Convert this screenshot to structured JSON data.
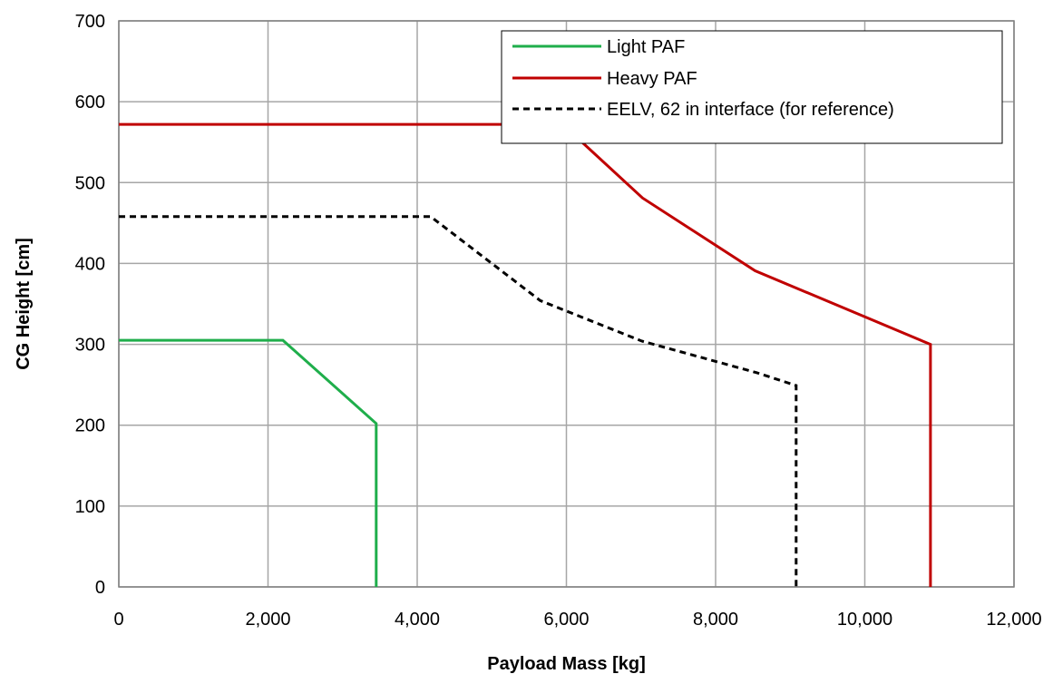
{
  "chart_data": {
    "type": "line",
    "xlabel": "Payload Mass [kg]",
    "ylabel": "CG Height [cm]",
    "xlim": [
      0,
      12000
    ],
    "ylim": [
      0,
      700
    ],
    "x_ticks": [
      0,
      2000,
      4000,
      6000,
      8000,
      10000,
      12000
    ],
    "x_tick_labels": [
      "0",
      "2,000",
      "4,000",
      "6,000",
      "8,000",
      "10,000",
      "12,000"
    ],
    "y_ticks": [
      0,
      100,
      200,
      300,
      400,
      500,
      600,
      700
    ],
    "y_tick_labels": [
      "0",
      "100",
      "200",
      "300",
      "400",
      "500",
      "600",
      "700"
    ],
    "grid": true,
    "legend_position": "top-right",
    "series": [
      {
        "name": "Light PAF",
        "color": "#1fae4b",
        "style": "solid",
        "points": [
          [
            0,
            305
          ],
          [
            2200,
            305
          ],
          [
            3450,
            202
          ],
          [
            3450,
            0
          ]
        ]
      },
      {
        "name": "Heavy PAF",
        "color": "#c00000",
        "style": "solid",
        "points": [
          [
            0,
            572
          ],
          [
            5950,
            572
          ],
          [
            7020,
            481
          ],
          [
            8530,
            391
          ],
          [
            10880,
            300
          ],
          [
            10880,
            0
          ]
        ]
      },
      {
        "name": "EELV, 62 in interface (for reference)",
        "color": "#000000",
        "style": "dashed",
        "points": [
          [
            0,
            458
          ],
          [
            4180,
            458
          ],
          [
            5650,
            354
          ],
          [
            7010,
            304
          ],
          [
            8550,
            265
          ],
          [
            9080,
            249
          ],
          [
            9080,
            0
          ]
        ]
      }
    ]
  }
}
